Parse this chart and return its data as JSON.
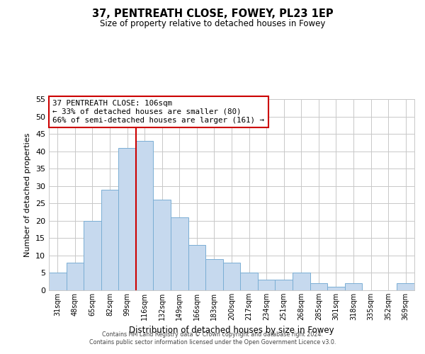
{
  "title": "37, PENTREATH CLOSE, FOWEY, PL23 1EP",
  "subtitle": "Size of property relative to detached houses in Fowey",
  "xlabel": "Distribution of detached houses by size in Fowey",
  "ylabel": "Number of detached properties",
  "bar_labels": [
    "31sqm",
    "48sqm",
    "65sqm",
    "82sqm",
    "99sqm",
    "116sqm",
    "132sqm",
    "149sqm",
    "166sqm",
    "183sqm",
    "200sqm",
    "217sqm",
    "234sqm",
    "251sqm",
    "268sqm",
    "285sqm",
    "301sqm",
    "318sqm",
    "335sqm",
    "352sqm",
    "369sqm"
  ],
  "bar_values": [
    5,
    8,
    20,
    29,
    41,
    43,
    26,
    21,
    13,
    9,
    8,
    5,
    3,
    3,
    5,
    2,
    1,
    2,
    0,
    0,
    2
  ],
  "bar_color": "#c6d9ee",
  "bar_edge_color": "#7aaed4",
  "ylim": [
    0,
    55
  ],
  "yticks": [
    0,
    5,
    10,
    15,
    20,
    25,
    30,
    35,
    40,
    45,
    50,
    55
  ],
  "vline_color": "#cc0000",
  "annotation_title": "37 PENTREATH CLOSE: 106sqm",
  "annotation_line1": "← 33% of detached houses are smaller (80)",
  "annotation_line2": "66% of semi-detached houses are larger (161) →",
  "annotation_box_color": "#ffffff",
  "annotation_border_color": "#cc0000",
  "footer1": "Contains HM Land Registry data © Crown copyright and database right 2024.",
  "footer2": "Contains public sector information licensed under the Open Government Licence v3.0.",
  "background_color": "#ffffff",
  "grid_color": "#c8c8c8"
}
